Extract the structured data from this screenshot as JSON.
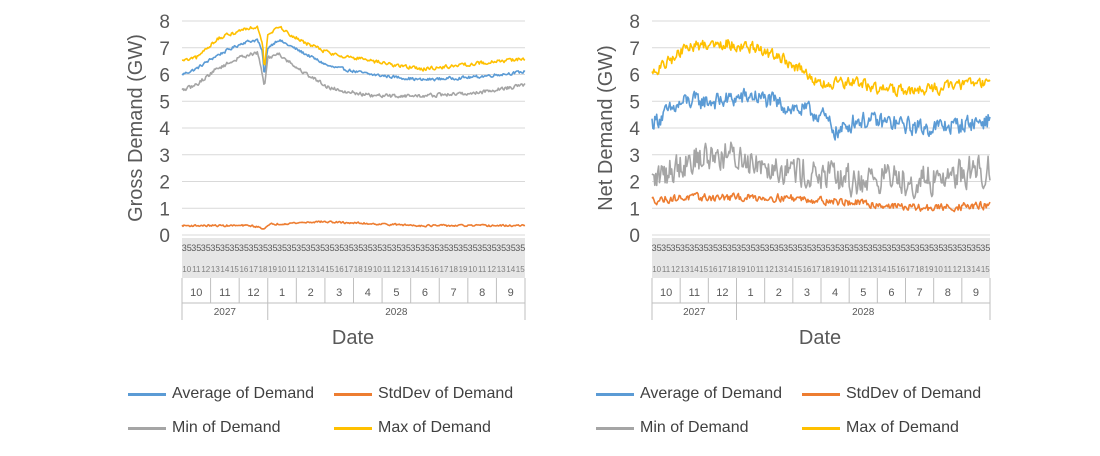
{
  "chart_data": [
    {
      "type": "line",
      "ylabel": "Gross Demand (GW)",
      "xlabel": "Date",
      "ylim": [
        0,
        8
      ],
      "yticks": [
        "0",
        "1",
        "2",
        "3",
        "4",
        "5",
        "6",
        "7",
        "8"
      ],
      "grid": "horizontal",
      "legend_position": "bottom",
      "x_axis": {
        "day_label": "35",
        "months_2027": [
          "10",
          "11",
          "12"
        ],
        "months_2028": [
          "1",
          "2",
          "3",
          "4",
          "5",
          "6",
          "7",
          "8",
          "9"
        ],
        "years": [
          "2027",
          "2028"
        ]
      },
      "series": [
        {
          "name": "Average of Demand",
          "color": "#5B9BD5",
          "anchors": [
            [
              0,
              6.0
            ],
            [
              0.04,
              6.2
            ],
            [
              0.1,
              6.7
            ],
            [
              0.18,
              7.2
            ],
            [
              0.22,
              7.3
            ],
            [
              0.235,
              6.8
            ],
            [
              0.24,
              5.9
            ],
            [
              0.25,
              7.0
            ],
            [
              0.28,
              7.3
            ],
            [
              0.34,
              6.9
            ],
            [
              0.43,
              6.3
            ],
            [
              0.55,
              6.0
            ],
            [
              0.7,
              5.8
            ],
            [
              0.85,
              5.9
            ],
            [
              1.0,
              6.1
            ]
          ],
          "noise": 0.08
        },
        {
          "name": "StdDev of Demand",
          "color": "#ED7D31",
          "anchors": [
            [
              0,
              0.35
            ],
            [
              0.2,
              0.35
            ],
            [
              0.24,
              0.25
            ],
            [
              0.26,
              0.4
            ],
            [
              0.4,
              0.5
            ],
            [
              0.5,
              0.45
            ],
            [
              0.7,
              0.35
            ],
            [
              1.0,
              0.35
            ]
          ],
          "noise": 0.05
        },
        {
          "name": "Min of Demand",
          "color": "#A5A5A5",
          "anchors": [
            [
              0,
              5.4
            ],
            [
              0.04,
              5.6
            ],
            [
              0.1,
              6.2
            ],
            [
              0.18,
              6.7
            ],
            [
              0.22,
              6.8
            ],
            [
              0.235,
              6.0
            ],
            [
              0.24,
              5.5
            ],
            [
              0.25,
              6.6
            ],
            [
              0.28,
              6.8
            ],
            [
              0.34,
              6.2
            ],
            [
              0.43,
              5.5
            ],
            [
              0.55,
              5.2
            ],
            [
              0.7,
              5.2
            ],
            [
              0.85,
              5.3
            ],
            [
              1.0,
              5.6
            ]
          ],
          "noise": 0.1
        },
        {
          "name": "Max of Demand",
          "color": "#FFC000",
          "anchors": [
            [
              0,
              6.5
            ],
            [
              0.04,
              6.6
            ],
            [
              0.1,
              7.3
            ],
            [
              0.18,
              7.7
            ],
            [
              0.22,
              7.8
            ],
            [
              0.235,
              7.2
            ],
            [
              0.24,
              6.2
            ],
            [
              0.25,
              7.5
            ],
            [
              0.28,
              7.8
            ],
            [
              0.34,
              7.3
            ],
            [
              0.43,
              6.8
            ],
            [
              0.55,
              6.5
            ],
            [
              0.7,
              6.2
            ],
            [
              0.85,
              6.4
            ],
            [
              1.0,
              6.6
            ]
          ],
          "noise": 0.1
        }
      ]
    },
    {
      "type": "line",
      "ylabel": "Net Demand (GW)",
      "xlabel": "Date",
      "ylim": [
        0,
        8
      ],
      "yticks": [
        "0",
        "1",
        "2",
        "3",
        "4",
        "5",
        "6",
        "7",
        "8"
      ],
      "grid": "horizontal",
      "legend_position": "bottom",
      "x_axis": {
        "day_label": "35",
        "months_2027": [
          "10",
          "11",
          "12"
        ],
        "months_2028": [
          "1",
          "2",
          "3",
          "4",
          "5",
          "6",
          "7",
          "8",
          "9"
        ],
        "years": [
          "2027",
          "2028"
        ]
      },
      "series": [
        {
          "name": "Average of Demand",
          "color": "#5B9BD5",
          "anchors": [
            [
              0,
              4.2
            ],
            [
              0.1,
              5.0
            ],
            [
              0.2,
              5.0
            ],
            [
              0.3,
              5.2
            ],
            [
              0.4,
              4.8
            ],
            [
              0.5,
              4.5
            ],
            [
              0.55,
              3.8
            ],
            [
              0.6,
              4.3
            ],
            [
              0.7,
              4.2
            ],
            [
              0.8,
              4.0
            ],
            [
              0.9,
              4.1
            ],
            [
              1.0,
              4.3
            ]
          ],
          "noise": 0.45
        },
        {
          "name": "StdDev of Demand",
          "color": "#ED7D31",
          "anchors": [
            [
              0,
              1.3
            ],
            [
              0.1,
              1.4
            ],
            [
              0.2,
              1.4
            ],
            [
              0.4,
              1.4
            ],
            [
              0.6,
              1.2
            ],
            [
              0.8,
              1.0
            ],
            [
              1.0,
              1.1
            ]
          ],
          "noise": 0.2
        },
        {
          "name": "Min of Demand",
          "color": "#A5A5A5",
          "anchors": [
            [
              0,
              2.0
            ],
            [
              0.1,
              2.8
            ],
            [
              0.2,
              3.0
            ],
            [
              0.3,
              2.8
            ],
            [
              0.4,
              2.5
            ],
            [
              0.5,
              2.2
            ],
            [
              0.6,
              2.0
            ],
            [
              0.7,
              2.2
            ],
            [
              0.8,
              2.0
            ],
            [
              0.9,
              2.3
            ],
            [
              1.0,
              2.5
            ]
          ],
          "noise": 0.8
        },
        {
          "name": "Max of Demand",
          "color": "#FFC000",
          "anchors": [
            [
              0,
              6.0
            ],
            [
              0.1,
              7.0
            ],
            [
              0.2,
              7.2
            ],
            [
              0.3,
              7.0
            ],
            [
              0.4,
              6.5
            ],
            [
              0.5,
              5.6
            ],
            [
              0.6,
              5.7
            ],
            [
              0.7,
              5.4
            ],
            [
              0.8,
              5.4
            ],
            [
              0.9,
              5.6
            ],
            [
              1.0,
              5.8
            ]
          ],
          "noise": 0.3
        }
      ]
    }
  ],
  "legends": [
    {
      "items": [
        "Average of Demand",
        "StdDev of Demand",
        "Min of Demand",
        "Max of Demand"
      ]
    },
    {
      "items": [
        "Average of Demand",
        "StdDev of Demand",
        "Min of Demand",
        "Max of Demand"
      ]
    }
  ]
}
